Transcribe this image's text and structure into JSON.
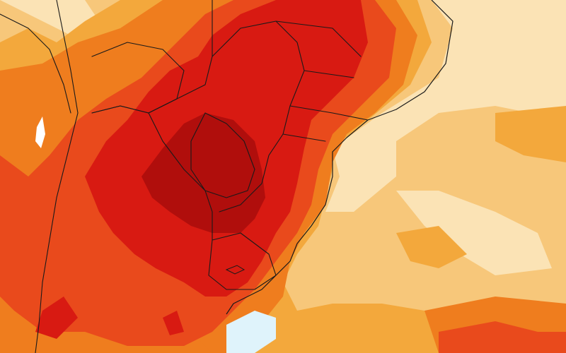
{
  "map": {
    "type": "temperature-anomaly",
    "legend": null,
    "colors": {
      "paleest": "#fbe3b5",
      "pale": "#f7c77a",
      "light_orange": "#f3a83c",
      "orange": "#ef7d1e",
      "red_orange": "#e94a1c",
      "red": "#d81a12",
      "dark_red": "#b00e0c",
      "blue": "#dff3fb",
      "white": "#ffffff",
      "border": "#1a1a1a"
    },
    "layers": [
      {
        "name": "anomaly-band-1",
        "color_key": "pale"
      },
      {
        "name": "anomaly-band-2",
        "color_key": "light_orange"
      },
      {
        "name": "anomaly-band-3",
        "color_key": "orange"
      },
      {
        "name": "anomaly-band-4",
        "color_key": "red_orange"
      },
      {
        "name": "anomaly-band-5",
        "color_key": "red"
      },
      {
        "name": "anomaly-band-6",
        "color_key": "dark_red"
      }
    ]
  }
}
